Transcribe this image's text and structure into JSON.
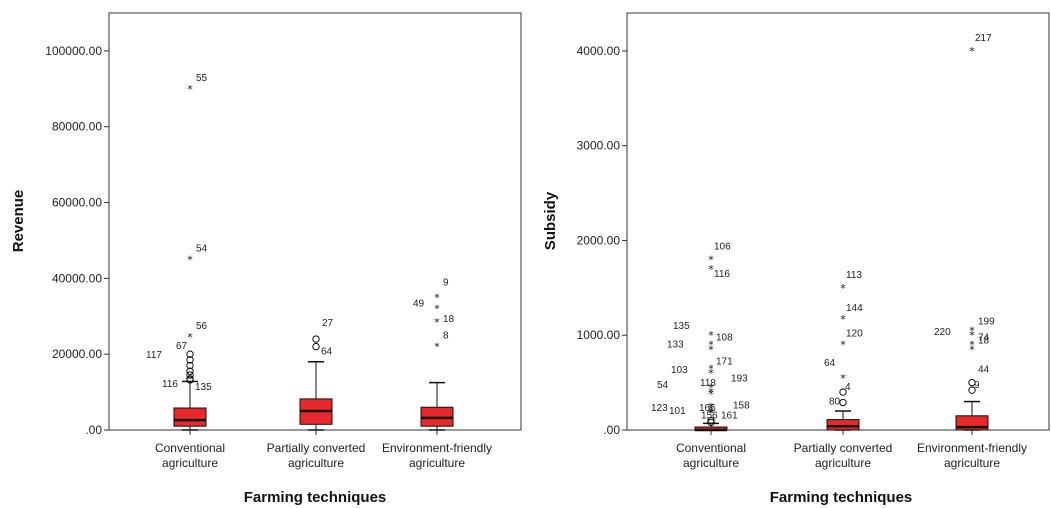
{
  "chart_data": [
    {
      "type": "boxplot",
      "xlabel": "Farming techniques",
      "ylabel": "Revenue",
      "ylim": [
        0,
        110000
      ],
      "yticks": [
        0,
        20000,
        40000,
        60000,
        80000,
        100000
      ],
      "ytick_labels": [
        ".00",
        "20000.00",
        "40000.00",
        "60000.00",
        "80000.00",
        "100000.00"
      ],
      "categories": [
        [
          "Conventional",
          "agriculture"
        ],
        [
          "Partially converted",
          "agriculture"
        ],
        [
          "Environment-friendly",
          "agriculture"
        ]
      ],
      "box_color": "#e8282b",
      "boxes": [
        {
          "whisker_low": 0,
          "q1": 1000,
          "median": 2600,
          "q3": 5800,
          "whisker_high": 12800
        },
        {
          "whisker_low": 0,
          "q1": 1500,
          "median": 5000,
          "q3": 8200,
          "whisker_high": 18000
        },
        {
          "whisker_low": 0,
          "q1": 1000,
          "median": 3200,
          "q3": 6000,
          "whisker_high": 12500
        }
      ],
      "outliers": [
        {
          "box": 0,
          "value": 90000,
          "marker": "star",
          "label": "55"
        },
        {
          "box": 0,
          "value": 45000,
          "marker": "star",
          "label": "54"
        },
        {
          "box": 0,
          "value": 24500,
          "marker": "star",
          "label": "56"
        },
        {
          "box": 0,
          "value": 20000,
          "marker": "circle",
          "label": "67"
        },
        {
          "box": 0,
          "value": 18500,
          "marker": "circle",
          "label": "117"
        },
        {
          "box": 0,
          "value": 17000,
          "marker": "circle",
          "label": ""
        },
        {
          "box": 0,
          "value": 15500,
          "marker": "circle",
          "label": ""
        },
        {
          "box": 0,
          "value": 14500,
          "marker": "circle",
          "label": ""
        },
        {
          "box": 0,
          "value": 13500,
          "marker": "circle",
          "label": "116"
        },
        {
          "box": 0,
          "value": 13200,
          "marker": "circle",
          "label": "135"
        },
        {
          "box": 1,
          "value": 24000,
          "marker": "circle",
          "label": "27"
        },
        {
          "box": 1,
          "value": 22000,
          "marker": "circle",
          "label": "64"
        },
        {
          "box": 2,
          "value": 35000,
          "marker": "star",
          "label": "9"
        },
        {
          "box": 2,
          "value": 32000,
          "marker": "star",
          "label": "49"
        },
        {
          "box": 2,
          "value": 28500,
          "marker": "star",
          "label": "18"
        },
        {
          "box": 2,
          "value": 22000,
          "marker": "star",
          "label": "8"
        }
      ]
    },
    {
      "type": "boxplot",
      "xlabel": "Farming techniques",
      "ylabel": "Subsidy",
      "ylim": [
        0,
        4400
      ],
      "yticks": [
        0,
        1000,
        2000,
        3000,
        4000
      ],
      "ytick_labels": [
        ".00",
        "1000.00",
        "2000.00",
        "3000.00",
        "4000.00"
      ],
      "categories": [
        [
          "Conventional",
          "agriculture"
        ],
        [
          "Partially converted",
          "agriculture"
        ],
        [
          "Environment-friendly",
          "agriculture"
        ]
      ],
      "box_color": "#e8282b",
      "boxes": [
        {
          "whisker_low": 0,
          "q1": 0,
          "median": 0,
          "q3": 30,
          "whisker_high": 70
        },
        {
          "whisker_low": 0,
          "q1": 0,
          "median": 40,
          "q3": 110,
          "whisker_high": 200
        },
        {
          "whisker_low": 0,
          "q1": 0,
          "median": 30,
          "q3": 150,
          "whisker_high": 300
        }
      ],
      "outliers": [
        {
          "box": 0,
          "value": 1800,
          "marker": "star",
          "label": "106"
        },
        {
          "box": 0,
          "value": 1700,
          "marker": "star",
          "label": "116"
        },
        {
          "box": 0,
          "value": 1000,
          "marker": "star",
          "label": "135"
        },
        {
          "box": 0,
          "value": 900,
          "marker": "star",
          "label": "108"
        },
        {
          "box": 0,
          "value": 850,
          "marker": "star",
          "label": "133"
        },
        {
          "box": 0,
          "value": 650,
          "marker": "star",
          "label": "171"
        },
        {
          "box": 0,
          "value": 600,
          "marker": "star",
          "label": "103"
        },
        {
          "box": 0,
          "value": 450,
          "marker": "star",
          "label": "193"
        },
        {
          "box": 0,
          "value": 400,
          "marker": "star",
          "label": "118"
        },
        {
          "box": 0,
          "value": 380,
          "marker": "star",
          "label": "54"
        },
        {
          "box": 0,
          "value": 250,
          "marker": "star",
          "label": "158"
        },
        {
          "box": 0,
          "value": 220,
          "marker": "star",
          "label": "166"
        },
        {
          "box": 0,
          "value": 190,
          "marker": "star",
          "label": "101"
        },
        {
          "box": 0,
          "value": 180,
          "marker": "star",
          "label": "123"
        },
        {
          "box": 0,
          "value": 100,
          "marker": "circle",
          "label": "161"
        },
        {
          "box": 0,
          "value": 80,
          "marker": "circle",
          "label": "156"
        },
        {
          "box": 1,
          "value": 1500,
          "marker": "star",
          "label": "113"
        },
        {
          "box": 1,
          "value": 1170,
          "marker": "star",
          "label": "144"
        },
        {
          "box": 1,
          "value": 900,
          "marker": "star",
          "label": "120"
        },
        {
          "box": 1,
          "value": 550,
          "marker": "star",
          "label": "64"
        },
        {
          "box": 1,
          "value": 400,
          "marker": "circle",
          "label": "4"
        },
        {
          "box": 1,
          "value": 290,
          "marker": "circle",
          "label": "80"
        },
        {
          "box": 2,
          "value": 4000,
          "marker": "star",
          "label": "217"
        },
        {
          "box": 2,
          "value": 1050,
          "marker": "star",
          "label": "199"
        },
        {
          "box": 2,
          "value": 1000,
          "marker": "star",
          "label": "220"
        },
        {
          "box": 2,
          "value": 900,
          "marker": "star",
          "label": "74"
        },
        {
          "box": 2,
          "value": 850,
          "marker": "star",
          "label": "18"
        },
        {
          "box": 2,
          "value": 500,
          "marker": "circle",
          "label": "44"
        },
        {
          "box": 2,
          "value": 420,
          "marker": "circle",
          "label": "9"
        }
      ]
    }
  ]
}
